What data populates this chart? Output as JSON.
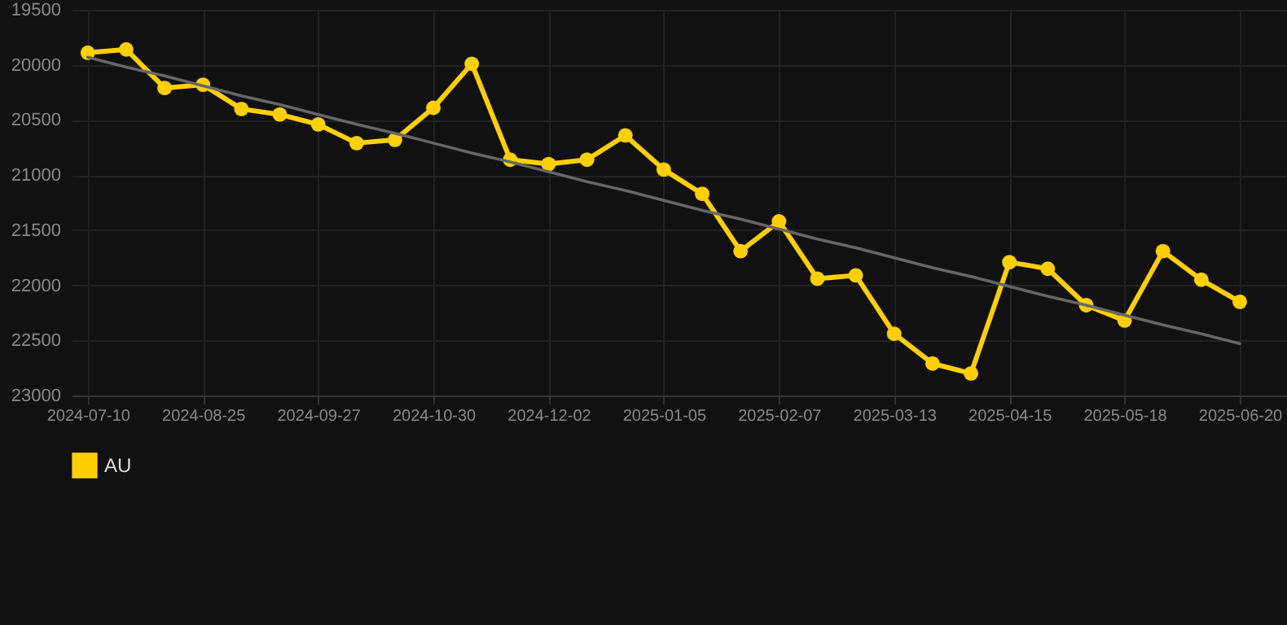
{
  "chart_data": {
    "type": "line",
    "categories": [
      "2024-07-10",
      null,
      null,
      "2024-08-25",
      null,
      null,
      "2024-09-27",
      null,
      null,
      "2024-10-30",
      null,
      null,
      "2024-12-02",
      null,
      null,
      "2025-01-05",
      null,
      null,
      "2025-02-07",
      null,
      null,
      "2025-03-13",
      null,
      null,
      "2025-04-15",
      null,
      null,
      "2025-05-18",
      null,
      null,
      "2025-06-20"
    ],
    "series": [
      {
        "name": "AU",
        "color": "#ffd000",
        "values": [
          19890,
          19860,
          20210,
          20180,
          20400,
          20450,
          20540,
          20710,
          20680,
          20390,
          19990,
          20860,
          20900,
          20860,
          20640,
          20950,
          21170,
          21690,
          21420,
          21940,
          21910,
          22440,
          22710,
          22800,
          21790,
          21850,
          22180,
          22320,
          21690,
          21950,
          22150
        ]
      },
      {
        "type": "line",
        "color": "#666666",
        "values": [
          19930,
          20020,
          20100,
          20190,
          20280,
          20360,
          20450,
          20540,
          20620,
          20710,
          20800,
          20880,
          20970,
          21060,
          21140,
          21230,
          21320,
          21400,
          21490,
          21580,
          21660,
          21750,
          21840,
          21920,
          22010,
          22100,
          22180,
          22270,
          22360,
          22440,
          22530
        ],
        "marker": "none"
      }
    ],
    "ylim": [
      23000,
      19500
    ],
    "yticks": [
      19500,
      20000,
      20500,
      21000,
      21500,
      22000,
      22500,
      23000
    ],
    "grid": true,
    "legend": "bottom",
    "marker": "circle",
    "line_style": "solid"
  }
}
